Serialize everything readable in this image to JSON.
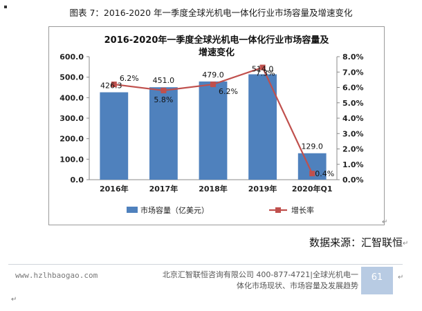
{
  "caption": "图表 7：2016-2020 年一季度全球光机电一体化行业市场容量及增速变化",
  "chart_data": {
    "type": "bar",
    "title": "2016-2020年一季度全球光机电一体化行业市场容量及增速变化",
    "categories": [
      "2016年",
      "2017年",
      "2018年",
      "2019年",
      "2020年Q1"
    ],
    "series": [
      {
        "name": "市场容量（亿美元）",
        "type": "bar",
        "axis": "left",
        "color": "#4f81bd",
        "values": [
          426.3,
          451.0,
          479.0,
          514.0,
          129.0
        ],
        "labels": [
          "426.3",
          "451.0",
          "479.0",
          "514.0",
          "129.0"
        ]
      },
      {
        "name": "增长率",
        "type": "line",
        "axis": "right",
        "color": "#c0504d",
        "values": [
          6.2,
          5.8,
          6.2,
          7.3,
          0.4
        ],
        "labels": [
          "6.2%",
          "5.8%",
          "6.2%",
          "7.3%",
          "0.4%"
        ]
      }
    ],
    "y_left": {
      "min": 0,
      "max": 600,
      "step": 100,
      "ticks": [
        "0.0",
        "100.0",
        "200.0",
        "300.0",
        "400.0",
        "500.0",
        "600.0"
      ]
    },
    "y_right": {
      "min": 0,
      "max": 8,
      "step": 1,
      "ticks": [
        "0.0%",
        "1.0%",
        "2.0%",
        "3.0%",
        "4.0%",
        "5.0%",
        "6.0%",
        "7.0%",
        "8.0%"
      ]
    },
    "grid": false,
    "legend_position": "bottom"
  },
  "source": "数据来源：汇智联恒",
  "footer": {
    "website": "www.hzlhbaogao.com",
    "line1": "北京汇智联恒咨询有限公司  400-877-4721|全球光机电一",
    "line2": "体化市场现状、市场容量及发展趋势",
    "page": "61"
  }
}
